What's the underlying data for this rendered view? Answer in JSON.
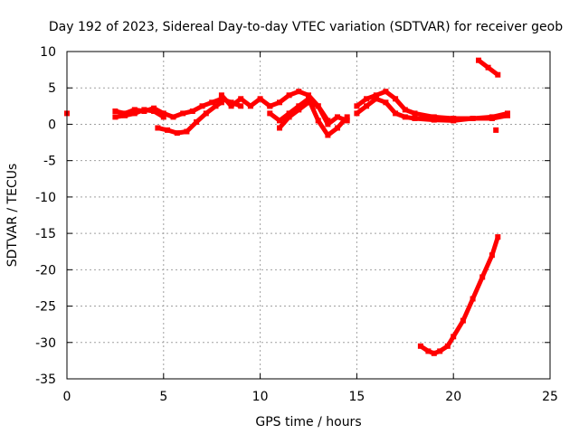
{
  "chart_data": {
    "type": "scatter",
    "title": "Day 192 of 2023, Sidereal Day-to-day VTEC variation (SDTVAR) for receiver geob",
    "xlabel": "GPS time / hours",
    "ylabel": "SDTVAR / TECUs",
    "xlim": [
      0,
      25
    ],
    "ylim": [
      -35,
      10
    ],
    "xticks": [
      0,
      5,
      10,
      15,
      20,
      25
    ],
    "yticks": [
      10,
      5,
      0,
      -5,
      -10,
      -15,
      -20,
      -25,
      -30,
      -35
    ],
    "grid": true,
    "color": "#ff0000",
    "series": [
      {
        "name": "isolated point near 0h",
        "values": [
          [
            0.0,
            1.5
          ]
        ]
      },
      {
        "name": "main band 2.5-9h",
        "values": [
          [
            2.5,
            1.8
          ],
          [
            3.0,
            1.5
          ],
          [
            3.5,
            2.0
          ],
          [
            4.0,
            1.8
          ],
          [
            4.5,
            2.2
          ],
          [
            5.0,
            1.5
          ],
          [
            5.5,
            1.0
          ],
          [
            6.0,
            1.5
          ],
          [
            6.5,
            1.8
          ],
          [
            7.0,
            2.5
          ],
          [
            7.5,
            3.0
          ],
          [
            8.0,
            3.5
          ],
          [
            8.5,
            3.0
          ],
          [
            9.0,
            2.5
          ]
        ]
      },
      {
        "name": "lower band 2.5-6h",
        "values": [
          [
            2.5,
            1.0
          ],
          [
            3.0,
            1.2
          ],
          [
            3.5,
            1.5
          ],
          [
            4.0,
            2.0
          ],
          [
            4.5,
            1.8
          ],
          [
            5.0,
            1.0
          ]
        ]
      },
      {
        "name": "dip segment 4.7-8h",
        "values": [
          [
            4.7,
            -0.5
          ],
          [
            5.2,
            -0.8
          ],
          [
            5.7,
            -1.2
          ],
          [
            6.2,
            -1.0
          ],
          [
            6.7,
            0.3
          ],
          [
            7.2,
            1.5
          ],
          [
            7.7,
            2.5
          ],
          [
            8.0,
            3.0
          ]
        ]
      },
      {
        "name": "band 8-10.5h",
        "values": [
          [
            8.0,
            4.0
          ],
          [
            8.5,
            2.5
          ],
          [
            9.0,
            3.5
          ],
          [
            9.5,
            2.5
          ],
          [
            10.0,
            3.5
          ],
          [
            10.5,
            2.5
          ]
        ]
      },
      {
        "name": "peak band 10.5-13.5h",
        "values": [
          [
            10.5,
            2.5
          ],
          [
            11.0,
            3.0
          ],
          [
            11.5,
            4.0
          ],
          [
            12.0,
            4.5
          ],
          [
            12.5,
            4.0
          ],
          [
            13.0,
            2.5
          ],
          [
            13.5,
            0.5
          ]
        ]
      },
      {
        "name": "descending branch A 10.5-14.5h",
        "values": [
          [
            10.5,
            1.5
          ],
          [
            11.0,
            0.5
          ],
          [
            11.5,
            1.5
          ],
          [
            12.0,
            2.5
          ],
          [
            12.5,
            3.5
          ],
          [
            13.0,
            0.5
          ],
          [
            13.5,
            -1.5
          ],
          [
            14.0,
            -0.5
          ],
          [
            14.5,
            1.0
          ]
        ]
      },
      {
        "name": "descending branch B 11-14.5h",
        "values": [
          [
            11.0,
            -0.5
          ],
          [
            11.5,
            1.0
          ],
          [
            12.0,
            2.0
          ],
          [
            12.5,
            3.0
          ],
          [
            13.0,
            2.5
          ],
          [
            13.5,
            0.0
          ],
          [
            14.0,
            1.0
          ],
          [
            14.5,
            0.5
          ]
        ]
      },
      {
        "name": "band 15-22.8h",
        "values": [
          [
            15.0,
            2.5
          ],
          [
            15.5,
            3.5
          ],
          [
            16.0,
            4.0
          ],
          [
            16.5,
            4.5
          ],
          [
            17.0,
            3.5
          ],
          [
            17.5,
            2.0
          ],
          [
            18.0,
            1.5
          ],
          [
            19.0,
            1.0
          ],
          [
            20.0,
            0.8
          ],
          [
            21.0,
            0.8
          ],
          [
            22.0,
            1.0
          ],
          [
            22.8,
            1.5
          ]
        ]
      },
      {
        "name": "lower band 15-22.8h",
        "values": [
          [
            15.0,
            1.5
          ],
          [
            15.5,
            2.5
          ],
          [
            16.0,
            3.5
          ],
          [
            16.5,
            3.0
          ],
          [
            17.0,
            1.5
          ],
          [
            17.5,
            1.0
          ],
          [
            18.0,
            0.8
          ],
          [
            19.0,
            0.6
          ],
          [
            20.0,
            0.5
          ],
          [
            21.0,
            0.8
          ],
          [
            22.0,
            0.8
          ],
          [
            22.8,
            1.2
          ]
        ]
      },
      {
        "name": "high segment 21.3-22.3h",
        "values": [
          [
            21.3,
            8.8
          ],
          [
            21.8,
            7.8
          ],
          [
            22.3,
            6.8
          ]
        ]
      },
      {
        "name": "isolated point near 22.2h",
        "values": [
          [
            22.2,
            -0.8
          ]
        ]
      },
      {
        "name": "deep excursion 18.3-22.3h",
        "values": [
          [
            18.3,
            -30.5
          ],
          [
            18.7,
            -31.2
          ],
          [
            19.0,
            -31.5
          ],
          [
            19.3,
            -31.2
          ],
          [
            19.7,
            -30.5
          ],
          [
            20.0,
            -29.2
          ],
          [
            20.5,
            -27.0
          ],
          [
            21.0,
            -24.0
          ],
          [
            21.5,
            -21.0
          ],
          [
            22.0,
            -18.0
          ],
          [
            22.3,
            -15.5
          ]
        ]
      }
    ]
  }
}
